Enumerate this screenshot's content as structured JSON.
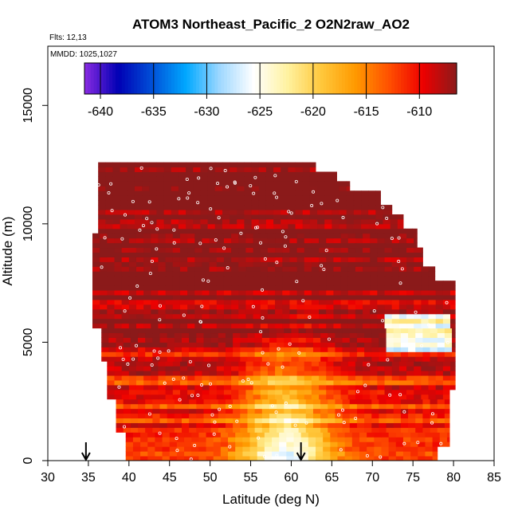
{
  "chart_data": {
    "type": "heatmap",
    "title": "ATOM3 Northeast_Pacific_2 O2N2raw_AO2",
    "annotations": [
      "Flts: 12,13",
      "MMDD: 1025,1027"
    ],
    "xlabel": "Latitude (deg N)",
    "ylabel": "Altitude (m)",
    "xlim": [
      30,
      85
    ],
    "ylim": [
      0,
      17500
    ],
    "x_ticks": [
      30,
      35,
      40,
      45,
      50,
      55,
      60,
      65,
      70,
      75,
      80,
      85
    ],
    "y_ticks": [
      0,
      5000,
      10000,
      15000
    ],
    "colorbar": {
      "range": [
        -641.5,
        -606.5
      ],
      "ticks": [
        -640,
        -635,
        -630,
        -625,
        -620,
        -615,
        -610
      ],
      "colors": [
        "#8a2be2",
        "#0000b4",
        "#0050d8",
        "#00a8ff",
        "#9fd8ff",
        "#ffffff",
        "#fff2a0",
        "#ffc83c",
        "#ff9a00",
        "#ff5000",
        "#ee0000",
        "#8b1a1a"
      ]
    },
    "markers": [
      {
        "label": "arrow",
        "latitude": 34.7
      },
      {
        "label": "arrow",
        "latitude": 61.2
      }
    ]
  }
}
